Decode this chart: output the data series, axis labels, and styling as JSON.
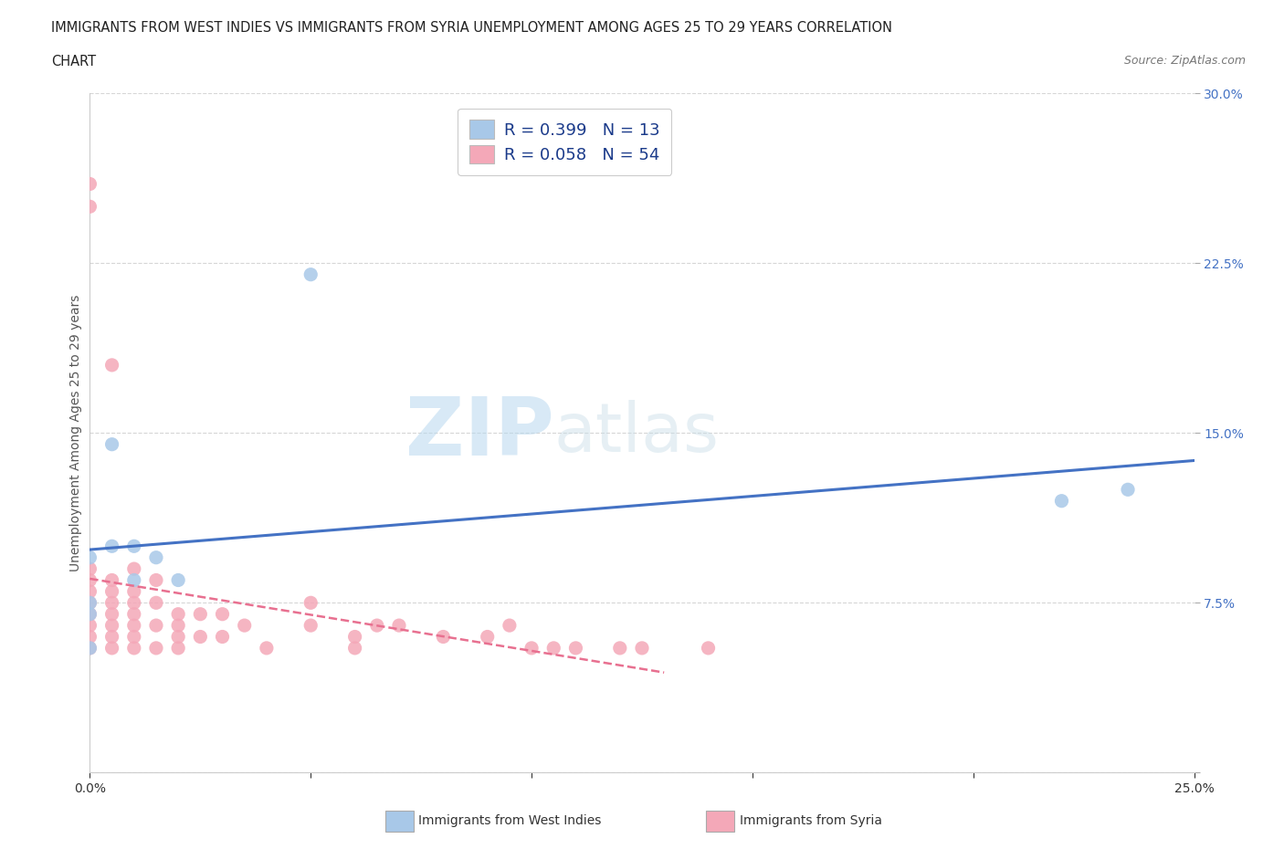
{
  "title_line1": "IMMIGRANTS FROM WEST INDIES VS IMMIGRANTS FROM SYRIA UNEMPLOYMENT AMONG AGES 25 TO 29 YEARS CORRELATION",
  "title_line2": "CHART",
  "source_text": "Source: ZipAtlas.com",
  "ylabel": "Unemployment Among Ages 25 to 29 years",
  "xlim": [
    0.0,
    0.25
  ],
  "ylim": [
    0.0,
    0.3
  ],
  "xticks": [
    0.0,
    0.05,
    0.1,
    0.15,
    0.2,
    0.25
  ],
  "yticks": [
    0.0,
    0.075,
    0.15,
    0.225,
    0.3
  ],
  "watermark_zip": "ZIP",
  "watermark_atlas": "atlas",
  "legend_r1": "R = 0.399",
  "legend_n1": "N = 13",
  "legend_r2": "R = 0.058",
  "legend_n2": "N = 54",
  "color_west_indies": "#a8c8e8",
  "color_syria": "#f4a8b8",
  "line_color_west_indies": "#4472c4",
  "line_color_syria": "#e87090",
  "background_color": "#ffffff",
  "west_indies_x": [
    0.0,
    0.0,
    0.0,
    0.0,
    0.005,
    0.005,
    0.01,
    0.01,
    0.015,
    0.02,
    0.05,
    0.22,
    0.235
  ],
  "west_indies_y": [
    0.055,
    0.07,
    0.075,
    0.095,
    0.1,
    0.145,
    0.085,
    0.1,
    0.095,
    0.085,
    0.22,
    0.12,
    0.125
  ],
  "syria_x": [
    0.0,
    0.0,
    0.0,
    0.0,
    0.0,
    0.0,
    0.0,
    0.0,
    0.0,
    0.0,
    0.005,
    0.005,
    0.005,
    0.005,
    0.005,
    0.005,
    0.005,
    0.005,
    0.01,
    0.01,
    0.01,
    0.01,
    0.01,
    0.01,
    0.01,
    0.015,
    0.015,
    0.015,
    0.015,
    0.02,
    0.02,
    0.02,
    0.02,
    0.025,
    0.025,
    0.03,
    0.03,
    0.035,
    0.04,
    0.05,
    0.05,
    0.06,
    0.06,
    0.065,
    0.07,
    0.08,
    0.09,
    0.095,
    0.1,
    0.105,
    0.11,
    0.12,
    0.125,
    0.14
  ],
  "syria_y": [
    0.055,
    0.06,
    0.065,
    0.07,
    0.075,
    0.08,
    0.085,
    0.09,
    0.25,
    0.26,
    0.055,
    0.06,
    0.065,
    0.07,
    0.075,
    0.08,
    0.085,
    0.18,
    0.055,
    0.06,
    0.065,
    0.07,
    0.075,
    0.08,
    0.09,
    0.055,
    0.065,
    0.075,
    0.085,
    0.055,
    0.06,
    0.065,
    0.07,
    0.06,
    0.07,
    0.06,
    0.07,
    0.065,
    0.055,
    0.065,
    0.075,
    0.055,
    0.06,
    0.065,
    0.065,
    0.06,
    0.06,
    0.065,
    0.055,
    0.055,
    0.055,
    0.055,
    0.055,
    0.055
  ]
}
